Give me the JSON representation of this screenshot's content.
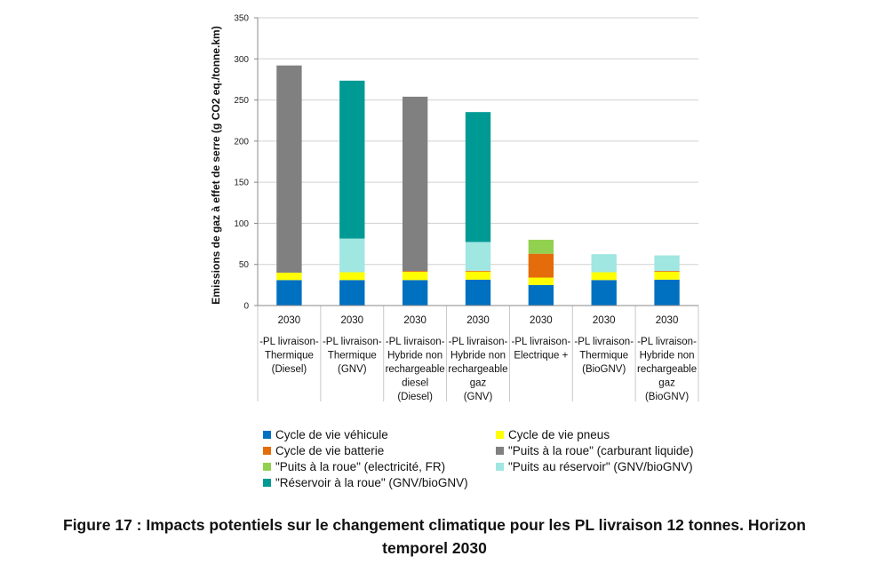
{
  "chart_data": {
    "type": "bar",
    "stacked": true,
    "ylabel": "Emissions de gaz à effet de serre (g CO2 eq./tonne.km)",
    "ylim": [
      0,
      350
    ],
    "yticks": [
      0,
      50,
      100,
      150,
      200,
      250,
      300,
      350
    ],
    "grid": true,
    "legend_position": "bottom",
    "categories": [
      {
        "year": "2030",
        "label": [
          "-PL livraison-",
          "Thermique",
          "(Diesel)"
        ]
      },
      {
        "year": "2030",
        "label": [
          "-PL livraison-",
          "Thermique",
          "(GNV)"
        ]
      },
      {
        "year": "2030",
        "label": [
          "-PL livraison-",
          "Hybride non",
          "rechargeable",
          "diesel",
          "(Diesel)"
        ]
      },
      {
        "year": "2030",
        "label": [
          "-PL livraison-",
          "Hybride non",
          "rechargeable",
          "gaz",
          "(GNV)"
        ]
      },
      {
        "year": "2030",
        "label": [
          "-PL livraison-",
          "Electrique +"
        ]
      },
      {
        "year": "2030",
        "label": [
          "-PL livraison-",
          "Thermique",
          "(BioGNV)"
        ]
      },
      {
        "year": "2030",
        "label": [
          "-PL livraison-",
          "Hybride non",
          "rechargeable",
          "gaz",
          "(BioGNV)"
        ]
      }
    ],
    "series": [
      {
        "name": "Cycle de vie véhicule",
        "color": "#0070c0",
        "values": [
          31,
          31,
          31,
          31.5,
          25,
          31,
          31.5
        ]
      },
      {
        "name": "Cycle de vie pneus",
        "color": "#ffff00",
        "values": [
          9,
          9.5,
          10,
          9.8,
          9,
          9.5,
          9.5
        ]
      },
      {
        "name": "Cycle de vie batterie",
        "color": "#e46c0a",
        "values": [
          0,
          0,
          1,
          1,
          29,
          0,
          1
        ]
      },
      {
        "name": "\"Puits à la roue\" (carburant liquide)",
        "color": "#808080",
        "values": [
          252,
          0,
          212,
          0,
          0,
          0,
          0
        ]
      },
      {
        "name": "\"Puits à la roue\" (electricité, FR)",
        "color": "#92d050",
        "values": [
          0,
          0,
          0,
          0,
          17,
          0,
          0
        ]
      },
      {
        "name": "\"Puits au réservoir\" (GNV/bioGNV)",
        "color": "#a0e6e1",
        "values": [
          0,
          41,
          0,
          35,
          0,
          22,
          19
        ]
      },
      {
        "name": "\"Réservoir à la roue\" (GNV/bioGNV)",
        "color": "#009a94",
        "values": [
          0,
          192,
          0,
          158,
          0,
          0,
          0
        ]
      }
    ]
  },
  "caption": {
    "line1": "Figure 17 : Impacts potentiels sur le changement climatique pour les PL livraison 12 tonnes. Horizon",
    "line2": "temporel 2030"
  }
}
